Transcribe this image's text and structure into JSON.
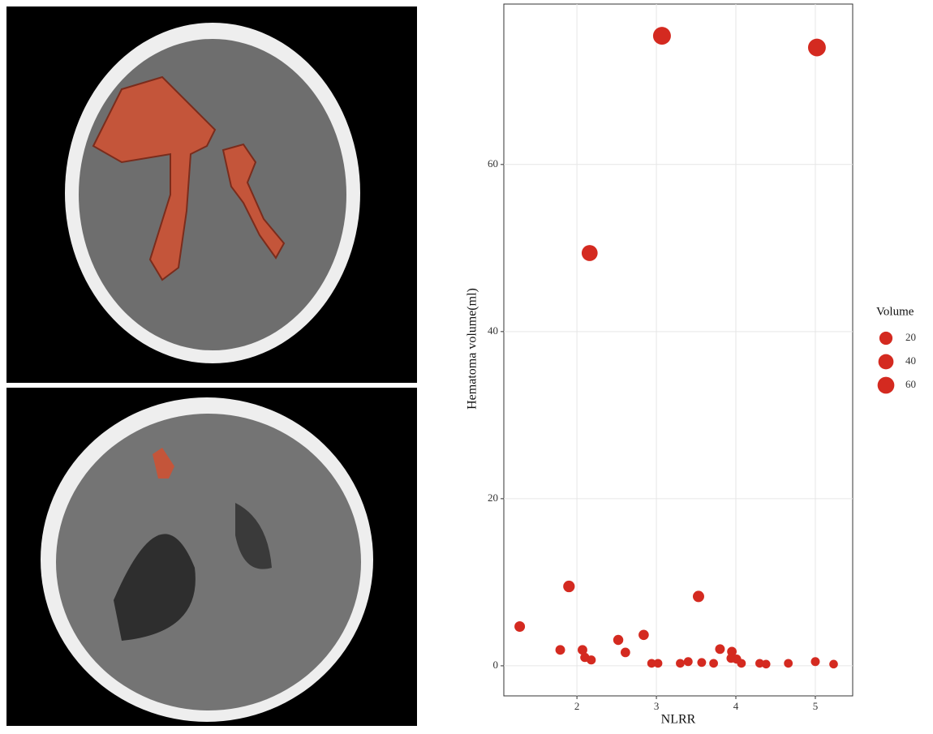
{
  "chart_data": {
    "type": "scatter",
    "x_label": "NLRR",
    "y_label": "Hematoma volume(ml)",
    "color": "#d42a20",
    "x": [
      1.28,
      1.79,
      1.9,
      2.07,
      2.1,
      2.18,
      2.16,
      2.52,
      2.61,
      2.84,
      2.94,
      3.02,
      3.07,
      3.3,
      3.4,
      3.53,
      3.57,
      3.72,
      3.8,
      3.95,
      3.94,
      4.01,
      4.07,
      4.3,
      4.38,
      4.66,
      5.0,
      5.02,
      5.23
    ],
    "values": [
      4.7,
      1.9,
      9.5,
      1.9,
      1.0,
      0.7,
      49.4,
      3.1,
      1.6,
      3.7,
      0.3,
      0.3,
      75.4,
      0.3,
      0.5,
      8.3,
      0.4,
      0.3,
      2.0,
      1.7,
      0.9,
      0.8,
      0.3,
      0.3,
      0.2,
      0.3,
      0.5,
      74.0,
      0.2
    ],
    "xlim": [
      1.08,
      5.47
    ],
    "ylim": [
      -3.6,
      79.2
    ],
    "xticks": [
      2,
      3,
      4,
      5
    ],
    "yticks": [
      0,
      20,
      40,
      60
    ],
    "grid": true,
    "size_legend": {
      "title": "Volume",
      "values": [
        20,
        40,
        60
      ]
    }
  }
}
